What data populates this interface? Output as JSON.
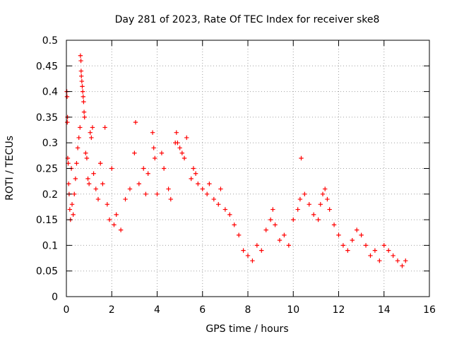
{
  "chart_data": {
    "type": "scatter",
    "title": "Day 281 of 2023, Rate Of TEC Index for receiver ske8",
    "xlabel": "GPS time / hours",
    "ylabel": "ROTI / TECUs",
    "xlim": [
      0,
      16
    ],
    "ylim": [
      0,
      0.5
    ],
    "xticks": [
      0,
      2,
      4,
      6,
      8,
      10,
      12,
      14,
      16
    ],
    "yticks": [
      0,
      0.05,
      0.1,
      0.15,
      0.2,
      0.25,
      0.3,
      0.35,
      0.4,
      0.45,
      0.5
    ],
    "ytick_labels": [
      "0",
      "0.05",
      "0.1",
      "0.15",
      "0.2",
      "0.25",
      "0.3",
      "0.35",
      "0.4",
      "0.45",
      "0.5"
    ],
    "grid": true,
    "marker": "+",
    "color": "#ff0000",
    "series": [
      {
        "name": "ROTI",
        "points": [
          [
            0.02,
            0.4
          ],
          [
            0.03,
            0.39
          ],
          [
            0.05,
            0.35
          ],
          [
            0.04,
            0.34
          ],
          [
            0.06,
            0.27
          ],
          [
            0.08,
            0.26
          ],
          [
            0.1,
            0.22
          ],
          [
            0.12,
            0.2
          ],
          [
            0.15,
            0.17
          ],
          [
            0.18,
            0.15
          ],
          [
            0.22,
            0.25
          ],
          [
            0.25,
            0.18
          ],
          [
            0.3,
            0.16
          ],
          [
            0.35,
            0.2
          ],
          [
            0.4,
            0.23
          ],
          [
            0.45,
            0.26
          ],
          [
            0.5,
            0.29
          ],
          [
            0.55,
            0.31
          ],
          [
            0.6,
            0.33
          ],
          [
            0.62,
            0.47
          ],
          [
            0.64,
            0.46
          ],
          [
            0.65,
            0.44
          ],
          [
            0.66,
            0.43
          ],
          [
            0.68,
            0.42
          ],
          [
            0.7,
            0.41
          ],
          [
            0.72,
            0.4
          ],
          [
            0.74,
            0.39
          ],
          [
            0.76,
            0.38
          ],
          [
            0.78,
            0.36
          ],
          [
            0.8,
            0.35
          ],
          [
            0.85,
            0.28
          ],
          [
            0.9,
            0.27
          ],
          [
            0.95,
            0.23
          ],
          [
            1.0,
            0.22
          ],
          [
            1.05,
            0.32
          ],
          [
            1.1,
            0.31
          ],
          [
            1.15,
            0.33
          ],
          [
            1.2,
            0.24
          ],
          [
            1.3,
            0.21
          ],
          [
            1.4,
            0.19
          ],
          [
            1.5,
            0.26
          ],
          [
            1.6,
            0.22
          ],
          [
            1.7,
            0.33
          ],
          [
            1.8,
            0.18
          ],
          [
            1.9,
            0.15
          ],
          [
            2.0,
            0.25
          ],
          [
            2.1,
            0.14
          ],
          [
            2.2,
            0.16
          ],
          [
            2.4,
            0.13
          ],
          [
            2.6,
            0.19
          ],
          [
            2.8,
            0.21
          ],
          [
            3.0,
            0.28
          ],
          [
            3.05,
            0.34
          ],
          [
            3.2,
            0.22
          ],
          [
            3.4,
            0.25
          ],
          [
            3.5,
            0.2
          ],
          [
            3.6,
            0.24
          ],
          [
            3.8,
            0.32
          ],
          [
            3.85,
            0.29
          ],
          [
            3.9,
            0.27
          ],
          [
            4.0,
            0.2
          ],
          [
            4.2,
            0.28
          ],
          [
            4.3,
            0.25
          ],
          [
            4.5,
            0.21
          ],
          [
            4.6,
            0.19
          ],
          [
            4.8,
            0.3
          ],
          [
            4.85,
            0.32
          ],
          [
            4.9,
            0.3
          ],
          [
            5.0,
            0.29
          ],
          [
            5.1,
            0.28
          ],
          [
            5.2,
            0.27
          ],
          [
            5.3,
            0.31
          ],
          [
            5.5,
            0.23
          ],
          [
            5.6,
            0.25
          ],
          [
            5.7,
            0.24
          ],
          [
            5.8,
            0.22
          ],
          [
            6.0,
            0.21
          ],
          [
            6.2,
            0.2
          ],
          [
            6.3,
            0.22
          ],
          [
            6.5,
            0.19
          ],
          [
            6.7,
            0.18
          ],
          [
            6.8,
            0.21
          ],
          [
            7.0,
            0.17
          ],
          [
            7.2,
            0.16
          ],
          [
            7.4,
            0.14
          ],
          [
            7.6,
            0.12
          ],
          [
            7.8,
            0.09
          ],
          [
            8.0,
            0.08
          ],
          [
            8.2,
            0.07
          ],
          [
            8.4,
            0.1
          ],
          [
            8.6,
            0.09
          ],
          [
            8.8,
            0.13
          ],
          [
            9.0,
            0.15
          ],
          [
            9.1,
            0.17
          ],
          [
            9.2,
            0.14
          ],
          [
            9.4,
            0.11
          ],
          [
            9.6,
            0.12
          ],
          [
            9.8,
            0.1
          ],
          [
            10.0,
            0.15
          ],
          [
            10.2,
            0.17
          ],
          [
            10.3,
            0.19
          ],
          [
            10.35,
            0.27
          ],
          [
            10.5,
            0.2
          ],
          [
            10.7,
            0.18
          ],
          [
            10.9,
            0.16
          ],
          [
            11.1,
            0.15
          ],
          [
            11.2,
            0.18
          ],
          [
            11.3,
            0.2
          ],
          [
            11.4,
            0.21
          ],
          [
            11.5,
            0.19
          ],
          [
            11.6,
            0.17
          ],
          [
            11.8,
            0.14
          ],
          [
            12.0,
            0.12
          ],
          [
            12.2,
            0.1
          ],
          [
            12.4,
            0.09
          ],
          [
            12.6,
            0.11
          ],
          [
            12.8,
            0.13
          ],
          [
            13.0,
            0.12
          ],
          [
            13.2,
            0.1
          ],
          [
            13.4,
            0.08
          ],
          [
            13.6,
            0.09
          ],
          [
            13.8,
            0.07
          ],
          [
            14.0,
            0.1
          ],
          [
            14.2,
            0.09
          ],
          [
            14.4,
            0.08
          ],
          [
            14.6,
            0.07
          ],
          [
            14.8,
            0.06
          ],
          [
            14.95,
            0.07
          ]
        ]
      }
    ]
  }
}
